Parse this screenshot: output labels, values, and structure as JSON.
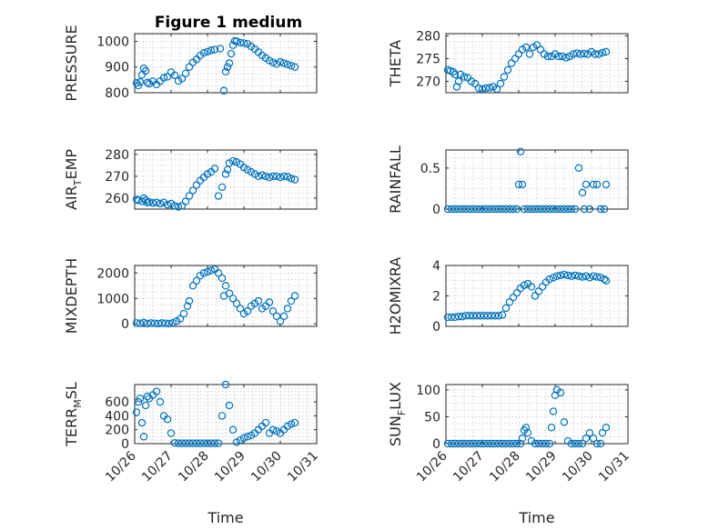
{
  "figure": {
    "title": "Figure 1 medium"
  },
  "chart_data": [
    {
      "id": "pressure",
      "type": "scatter",
      "title": "Figure 1 medium",
      "ylabel": {
        "base": "PRESSURE",
        "sub": "",
        "tail": ""
      },
      "ylim": [
        800,
        1030
      ],
      "yticks": [
        800,
        900,
        1000
      ],
      "ytick_labels": [
        "800",
        "900",
        "1000"
      ],
      "xlabel": "",
      "xlim": [
        0,
        5
      ],
      "xticks": [
        0,
        1,
        2,
        3,
        4,
        5
      ],
      "xtick_labels": [],
      "grid": true,
      "series": [
        {
          "x": [
            0.05,
            0.1,
            0.15,
            0.2,
            0.25,
            0.3,
            0.35,
            0.4,
            0.5,
            0.6,
            0.7,
            0.8,
            0.9,
            1.0,
            1.1,
            1.2,
            1.3,
            1.4,
            1.5,
            1.6,
            1.7,
            1.8,
            1.9,
            2.0,
            2.1,
            2.2,
            2.35,
            2.45,
            2.5,
            2.55,
            2.6,
            2.65,
            2.7,
            2.75,
            2.8,
            2.9,
            3.0,
            3.1,
            3.2,
            3.3,
            3.4,
            3.5,
            3.6,
            3.7,
            3.8,
            3.9,
            4.0,
            4.1,
            4.2,
            4.3,
            4.4
          ],
          "y": [
            838,
            828,
            842,
            870,
            895,
            885,
            840,
            835,
            845,
            832,
            845,
            858,
            862,
            880,
            868,
            846,
            855,
            875,
            900,
            918,
            930,
            945,
            955,
            960,
            965,
            968,
            972,
            808,
            882,
            900,
            915,
            952,
            985,
            1002,
            1000,
            995,
            993,
            990,
            980,
            970,
            958,
            945,
            935,
            925,
            918,
            912,
            920,
            915,
            910,
            905,
            900
          ]
        }
      ]
    },
    {
      "id": "theta",
      "type": "scatter",
      "ylabel": {
        "base": "THETA",
        "sub": "",
        "tail": ""
      },
      "ylim": [
        267.5,
        280.5
      ],
      "yticks": [
        270,
        275,
        280
      ],
      "ytick_labels": [
        "270",
        "275",
        "280"
      ],
      "xlabel": "",
      "xlim": [
        0,
        5
      ],
      "xticks": [
        0,
        1,
        2,
        3,
        4,
        5
      ],
      "xtick_labels": [],
      "grid": true,
      "series": [
        {
          "x": [
            0.05,
            0.12,
            0.2,
            0.25,
            0.3,
            0.35,
            0.4,
            0.5,
            0.6,
            0.7,
            0.8,
            0.9,
            1.0,
            1.1,
            1.2,
            1.3,
            1.4,
            1.5,
            1.6,
            1.7,
            1.8,
            1.9,
            2.0,
            2.1,
            2.2,
            2.3,
            2.4,
            2.5,
            2.6,
            2.7,
            2.8,
            2.9,
            3.0,
            3.1,
            3.2,
            3.3,
            3.4,
            3.5,
            3.6,
            3.7,
            3.8,
            3.9,
            4.0,
            4.1,
            4.2,
            4.3,
            4.4
          ],
          "y": [
            272.5,
            272.3,
            272.1,
            271.5,
            268.8,
            270.0,
            271.5,
            271.0,
            270.8,
            270.0,
            269.5,
            268.5,
            268.3,
            268.5,
            268.6,
            268.8,
            268.3,
            269.5,
            271.0,
            272.5,
            274.0,
            275.0,
            276.0,
            277.0,
            277.5,
            276.0,
            277.5,
            278.0,
            277.0,
            276.0,
            275.5,
            275.5,
            276.0,
            275.5,
            275.5,
            275.2,
            275.5,
            276.0,
            276.2,
            276.0,
            276.1,
            276.0,
            276.5,
            276.0,
            276.0,
            276.3,
            276.5
          ]
        }
      ]
    },
    {
      "id": "air-temp",
      "type": "scatter",
      "ylabel": {
        "base": "AIR",
        "sub": "T",
        "tail": "EMP"
      },
      "ylim": [
        255,
        282
      ],
      "yticks": [
        260,
        270,
        280
      ],
      "ytick_labels": [
        "260",
        "270",
        "280"
      ],
      "xlabel": "",
      "xlim": [
        0,
        5
      ],
      "xticks": [
        0,
        1,
        2,
        3,
        4,
        5
      ],
      "xtick_labels": [],
      "grid": true,
      "series": [
        {
          "x": [
            0.05,
            0.1,
            0.2,
            0.25,
            0.3,
            0.35,
            0.4,
            0.5,
            0.6,
            0.7,
            0.8,
            0.9,
            1.0,
            1.1,
            1.2,
            1.3,
            1.4,
            1.5,
            1.6,
            1.7,
            1.8,
            1.9,
            2.0,
            2.1,
            2.2,
            2.3,
            2.4,
            2.5,
            2.55,
            2.6,
            2.7,
            2.8,
            2.9,
            3.0,
            3.1,
            3.2,
            3.3,
            3.4,
            3.5,
            3.6,
            3.7,
            3.8,
            3.9,
            4.0,
            4.1,
            4.2,
            4.3,
            4.4
          ],
          "y": [
            259.5,
            259.0,
            258.5,
            260.0,
            259.0,
            258.0,
            258.2,
            257.8,
            258.0,
            257.5,
            258.0,
            257.0,
            257.5,
            256.5,
            256.0,
            256.5,
            258.5,
            261.0,
            263.5,
            266.0,
            268.0,
            269.5,
            271.0,
            272.0,
            273.5,
            261.0,
            265.0,
            271.0,
            273.0,
            276.0,
            277.0,
            276.5,
            275.5,
            274.0,
            273.0,
            272.0,
            271.0,
            270.0,
            270.5,
            270.0,
            269.5,
            270.0,
            270.0,
            269.5,
            270.0,
            269.8,
            269.0,
            268.5
          ]
        }
      ]
    },
    {
      "id": "rainfall",
      "type": "scatter",
      "ylabel": {
        "base": "RAINFALL",
        "sub": "",
        "tail": ""
      },
      "ylim": [
        0,
        0.72
      ],
      "yticks": [
        0,
        0.5
      ],
      "ytick_labels": [
        "0",
        "0.5"
      ],
      "xlabel": "",
      "xlim": [
        0,
        5
      ],
      "xticks": [
        0,
        1,
        2,
        3,
        4,
        5
      ],
      "xtick_labels": [],
      "grid": true,
      "series": [
        {
          "x": [
            0.05,
            0.15,
            0.25,
            0.35,
            0.45,
            0.55,
            0.65,
            0.75,
            0.85,
            0.95,
            1.05,
            1.15,
            1.25,
            1.35,
            1.45,
            1.55,
            1.65,
            1.75,
            1.85,
            1.95,
            2.0,
            2.05,
            2.1,
            2.15,
            2.25,
            2.35,
            2.45,
            2.55,
            2.65,
            2.75,
            2.85,
            2.95,
            3.05,
            3.15,
            3.25,
            3.35,
            3.45,
            3.55,
            3.65,
            3.75,
            3.8,
            3.85,
            3.95,
            4.05,
            4.15,
            4.25,
            4.35,
            4.4
          ],
          "y": [
            0,
            0,
            0,
            0,
            0,
            0,
            0,
            0,
            0,
            0,
            0,
            0,
            0,
            0,
            0,
            0,
            0,
            0,
            0,
            0,
            0.3,
            0.7,
            0.3,
            0,
            0,
            0,
            0,
            0,
            0,
            0,
            0,
            0,
            0,
            0,
            0,
            0,
            0,
            0,
            0.5,
            0.2,
            0,
            0.3,
            0,
            0.3,
            0.3,
            0,
            0,
            0.3
          ]
        }
      ]
    },
    {
      "id": "mixdepth",
      "type": "scatter",
      "ylabel": {
        "base": "MIXDEPTH",
        "sub": "",
        "tail": ""
      },
      "ylim": [
        -100,
        2300
      ],
      "yticks": [
        0,
        1000,
        2000
      ],
      "ytick_labels": [
        "0",
        "1000",
        "2000"
      ],
      "xlabel": "",
      "xlim": [
        0,
        5
      ],
      "xticks": [
        0,
        1,
        2,
        3,
        4,
        5
      ],
      "xtick_labels": [],
      "grid": true,
      "series": [
        {
          "x": [
            0.05,
            0.15,
            0.25,
            0.35,
            0.45,
            0.55,
            0.65,
            0.75,
            0.85,
            0.95,
            1.05,
            1.15,
            1.25,
            1.35,
            1.45,
            1.5,
            1.6,
            1.7,
            1.8,
            1.9,
            2.0,
            2.1,
            2.2,
            2.3,
            2.4,
            2.45,
            2.5,
            2.6,
            2.7,
            2.8,
            2.9,
            3.0,
            3.1,
            3.2,
            3.3,
            3.4,
            3.5,
            3.6,
            3.7,
            3.8,
            3.9,
            4.0,
            4.1,
            4.2,
            4.3,
            4.4
          ],
          "y": [
            30,
            20,
            50,
            10,
            30,
            20,
            10,
            30,
            20,
            10,
            40,
            100,
            200,
            400,
            700,
            900,
            1500,
            1700,
            1900,
            2000,
            2050,
            2100,
            2150,
            2000,
            1800,
            1100,
            1500,
            1200,
            1000,
            800,
            600,
            400,
            500,
            700,
            800,
            900,
            600,
            700,
            850,
            500,
            300,
            100,
            300,
            600,
            900,
            1100
          ]
        }
      ]
    },
    {
      "id": "h2omixra",
      "type": "scatter",
      "ylabel": {
        "base": "H2OMIXRA",
        "sub": "",
        "tail": ""
      },
      "ylim": [
        0,
        4
      ],
      "yticks": [
        0,
        2,
        4
      ],
      "ytick_labels": [
        "0",
        "2",
        "4"
      ],
      "xlabel": "",
      "xlim": [
        0,
        5
      ],
      "xticks": [
        0,
        1,
        2,
        3,
        4,
        5
      ],
      "xtick_labels": [],
      "grid": true,
      "series": [
        {
          "x": [
            0.05,
            0.15,
            0.25,
            0.35,
            0.45,
            0.55,
            0.65,
            0.75,
            0.85,
            0.95,
            1.05,
            1.15,
            1.25,
            1.35,
            1.45,
            1.55,
            1.65,
            1.75,
            1.85,
            1.95,
            2.05,
            2.15,
            2.25,
            2.35,
            2.45,
            2.55,
            2.65,
            2.75,
            2.85,
            2.95,
            3.05,
            3.15,
            3.25,
            3.35,
            3.45,
            3.55,
            3.65,
            3.75,
            3.85,
            3.95,
            4.05,
            4.15,
            4.25,
            4.35,
            4.4
          ],
          "y": [
            0.6,
            0.6,
            0.6,
            0.65,
            0.65,
            0.7,
            0.7,
            0.7,
            0.7,
            0.7,
            0.7,
            0.7,
            0.7,
            0.7,
            0.7,
            0.75,
            1.2,
            1.6,
            1.9,
            2.2,
            2.5,
            2.7,
            2.8,
            2.6,
            2.0,
            2.3,
            2.6,
            2.9,
            3.1,
            3.2,
            3.3,
            3.35,
            3.4,
            3.35,
            3.3,
            3.35,
            3.3,
            3.25,
            3.3,
            3.2,
            3.3,
            3.25,
            3.2,
            3.1,
            3.0
          ]
        }
      ]
    },
    {
      "id": "terr-msl",
      "type": "scatter",
      "ylabel": {
        "base": "TERR",
        "sub": "M",
        "tail": "SL"
      },
      "ylim": [
        0,
        850
      ],
      "yticks": [
        0,
        200,
        400,
        600
      ],
      "ytick_labels": [
        "0",
        "200",
        "400",
        "600"
      ],
      "xlabel": "Time",
      "xlim": [
        0,
        5
      ],
      "xticks": [
        0,
        1,
        2,
        3,
        4,
        5
      ],
      "xtick_labels": [
        "10/26",
        "10/27",
        "10/28",
        "10/29",
        "10/30",
        "10/31"
      ],
      "grid": true,
      "series": [
        {
          "x": [
            0.05,
            0.1,
            0.15,
            0.2,
            0.25,
            0.3,
            0.35,
            0.4,
            0.5,
            0.6,
            0.7,
            0.8,
            0.9,
            1.0,
            1.1,
            1.2,
            1.3,
            1.4,
            1.5,
            1.6,
            1.7,
            1.8,
            1.9,
            2.0,
            2.1,
            2.2,
            2.3,
            2.4,
            2.5,
            2.6,
            2.7,
            2.8,
            2.9,
            3.0,
            3.1,
            3.2,
            3.3,
            3.4,
            3.5,
            3.6,
            3.7,
            3.8,
            3.9,
            4.0,
            4.1,
            4.2,
            4.3,
            4.4
          ],
          "y": [
            450,
            600,
            650,
            300,
            100,
            550,
            680,
            650,
            700,
            750,
            600,
            400,
            350,
            150,
            10,
            5,
            5,
            5,
            5,
            5,
            5,
            5,
            5,
            5,
            5,
            5,
            5,
            400,
            850,
            550,
            200,
            20,
            50,
            80,
            100,
            120,
            150,
            200,
            250,
            300,
            150,
            200,
            180,
            150,
            200,
            250,
            280,
            300
          ]
        }
      ]
    },
    {
      "id": "sun-flux",
      "type": "scatter",
      "ylabel": {
        "base": "SUN",
        "sub": "F",
        "tail": "LUX"
      },
      "ylim": [
        0,
        110
      ],
      "yticks": [
        0,
        50,
        100
      ],
      "ytick_labels": [
        "0",
        "50",
        "100"
      ],
      "xlabel": "Time",
      "xlim": [
        0,
        5
      ],
      "xticks": [
        0,
        1,
        2,
        3,
        4,
        5
      ],
      "xtick_labels": [
        "10/26",
        "10/27",
        "10/28",
        "10/29",
        "10/30",
        "10/31"
      ],
      "grid": true,
      "series": [
        {
          "x": [
            0.05,
            0.15,
            0.25,
            0.35,
            0.45,
            0.55,
            0.65,
            0.75,
            0.85,
            0.95,
            1.05,
            1.15,
            1.25,
            1.35,
            1.45,
            1.55,
            1.65,
            1.75,
            1.85,
            1.95,
            2.05,
            2.1,
            2.15,
            2.2,
            2.25,
            2.35,
            2.45,
            2.55,
            2.65,
            2.75,
            2.85,
            2.9,
            2.95,
            3.0,
            3.05,
            3.15,
            3.25,
            3.35,
            3.45,
            3.55,
            3.65,
            3.75,
            3.85,
            3.95,
            4.05,
            4.15,
            4.25,
            4.3,
            4.4
          ],
          "y": [
            0,
            0,
            0,
            0,
            0,
            0,
            0,
            0,
            0,
            0,
            0,
            0,
            0,
            0,
            0,
            0,
            0,
            0,
            0,
            0,
            0,
            10,
            25,
            30,
            20,
            5,
            0,
            0,
            0,
            0,
            0,
            30,
            60,
            90,
            100,
            95,
            40,
            5,
            0,
            0,
            0,
            0,
            10,
            20,
            10,
            0,
            0,
            20,
            30
          ]
        }
      ]
    }
  ]
}
